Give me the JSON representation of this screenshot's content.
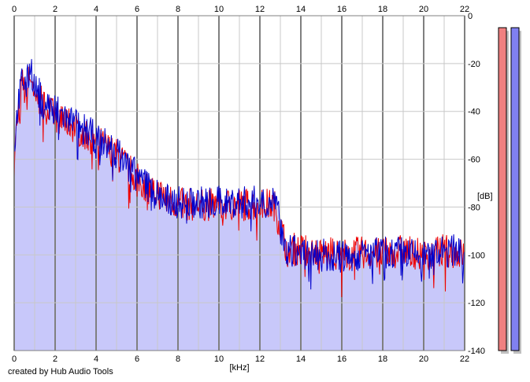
{
  "credit": "created by Hub Audio Tools",
  "chart_data": {
    "type": "area",
    "title": "",
    "xlabel": "[kHz]",
    "ylabel": "[dB]",
    "xlim": [
      0,
      22
    ],
    "ylim": [
      -140,
      0
    ],
    "x_ticks": [
      0,
      2,
      4,
      6,
      8,
      10,
      12,
      14,
      16,
      18,
      20,
      22
    ],
    "x_tick_labels": [
      "0",
      "2",
      "4",
      "6",
      "8",
      "10",
      "12",
      "14",
      "16",
      "18",
      "20",
      "22"
    ],
    "y_ticks": [
      0,
      -20,
      -40,
      -60,
      -80,
      -100,
      -120,
      -140
    ],
    "y_tick_labels": [
      "0",
      "-20",
      "-40",
      "-60",
      "-80",
      "-100",
      "-120",
      "-140"
    ],
    "grid": true,
    "colors": {
      "area_fill": "#c8c8fa",
      "series_red": "#ee0000",
      "series_blue": "#0000cc",
      "grid_minor": "#c8c8c8",
      "grid_major": "#808080",
      "meter_left": "#f08080",
      "meter_right": "#8080f0"
    },
    "x": [
      0,
      0.2,
      0.4,
      0.6,
      0.8,
      1.0,
      1.5,
      2.0,
      2.5,
      3.0,
      3.5,
      4.0,
      4.5,
      5.0,
      5.5,
      6.0,
      6.5,
      7.0,
      7.5,
      8.0,
      9.0,
      10.0,
      11.0,
      12.0,
      12.7,
      13.0,
      13.3,
      14.0,
      15.0,
      16.0,
      17.0,
      18.0,
      19.0,
      20.0,
      21.0,
      22.0
    ],
    "series": [
      {
        "values": [
          -57,
          -40,
          -28,
          -35,
          -22,
          -33,
          -38,
          -42,
          -44,
          -47,
          -50,
          -52,
          -55,
          -58,
          -63,
          -68,
          -72,
          -74,
          -76,
          -79,
          -79,
          -79,
          -79,
          -79,
          -79,
          -88,
          -97,
          -98,
          -99,
          -100,
          -99,
          -100,
          -98,
          -100,
          -98,
          -100
        ]
      },
      {
        "values": [
          -57,
          -35,
          -26,
          -30,
          -20,
          -30,
          -36,
          -40,
          -42,
          -45,
          -48,
          -51,
          -54,
          -57,
          -62,
          -67,
          -71,
          -75,
          -77,
          -78,
          -78,
          -78,
          -78,
          -78,
          -77,
          -86,
          -98,
          -99,
          -100,
          -101,
          -100,
          -99,
          -99,
          -101,
          -99,
          -97
        ]
      }
    ],
    "meters": [
      {
        "level": -5
      },
      {
        "level": -5
      }
    ]
  }
}
